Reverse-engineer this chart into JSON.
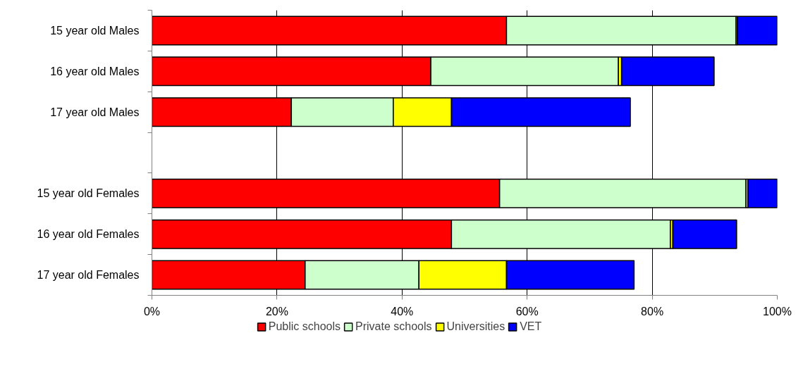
{
  "chart_data": {
    "type": "bar",
    "orientation": "horizontal",
    "stacked": true,
    "categories": [
      "15 year old Males",
      "16 year old Males",
      "17 year old Males",
      null,
      "15 year old Females",
      "16 year old Females",
      "17 year old Females"
    ],
    "series": [
      {
        "name": "Public schools",
        "color": "#ff0000",
        "values": [
          56.7,
          44.6,
          22.3,
          null,
          55.6,
          47.9,
          24.5
        ]
      },
      {
        "name": "Private schools",
        "color": "#ccffcc",
        "values": [
          36.7,
          30.0,
          16.3,
          null,
          39.4,
          35.0,
          18.2
        ]
      },
      {
        "name": "Universities",
        "color": "#ffff00",
        "values": [
          0.2,
          0.5,
          9.3,
          null,
          0.3,
          0.4,
          14.0
        ]
      },
      {
        "name": "VET",
        "color": "#0000ff",
        "values": [
          6.4,
          14.8,
          28.6,
          null,
          4.7,
          10.2,
          20.4
        ]
      }
    ],
    "xlim": [
      0,
      100
    ],
    "xticks": [
      {
        "value": 0,
        "label": "0%"
      },
      {
        "value": 20,
        "label": "20%"
      },
      {
        "value": 40,
        "label": "40%"
      },
      {
        "value": 60,
        "label": "60%"
      },
      {
        "value": 80,
        "label": "80%"
      },
      {
        "value": 100,
        "label": "100%"
      }
    ],
    "grid": "x",
    "legend": "bottom"
  }
}
